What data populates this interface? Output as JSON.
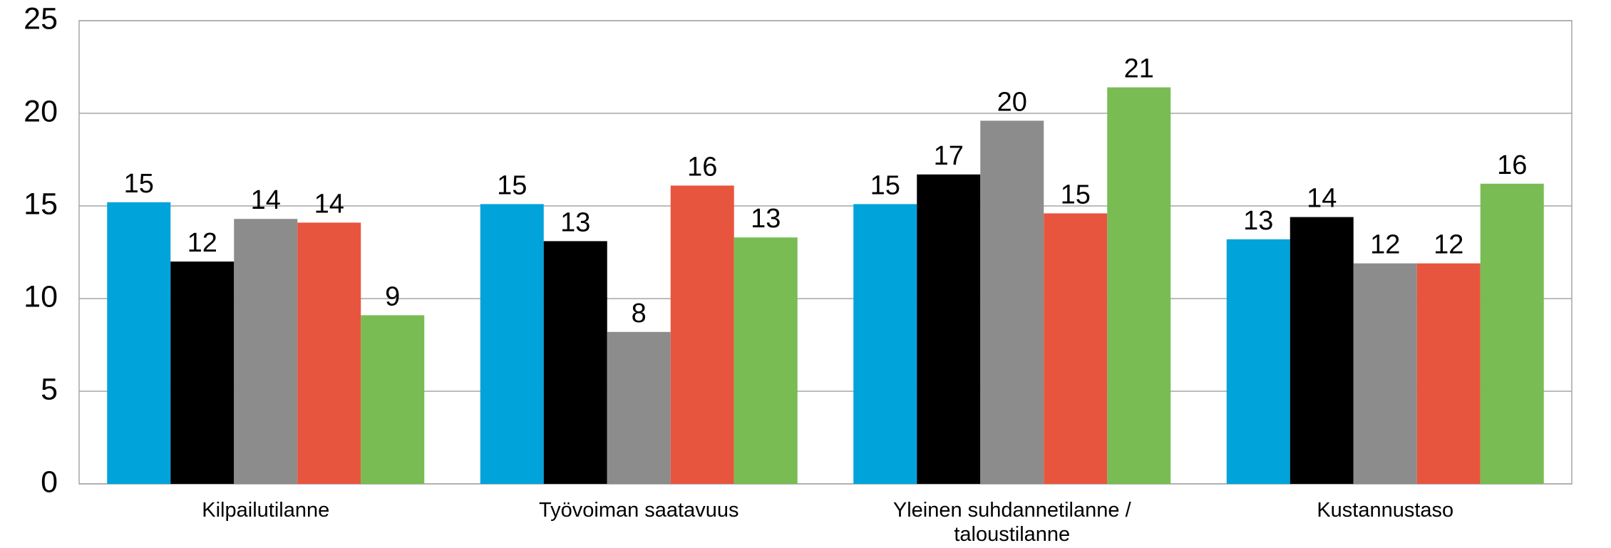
{
  "chart_data": {
    "type": "bar",
    "categories": [
      "Kilpailutilanne",
      "Työvoiman saatavuus",
      "Yleinen suhdannetilanne / taloustilanne",
      "Kustannustaso"
    ],
    "series": [
      {
        "color": "#00a3da",
        "values": [
          15.2,
          15.1,
          15.1,
          13.2
        ],
        "value_labels": [
          "15",
          "15",
          "15",
          "13"
        ]
      },
      {
        "color": "#000000",
        "values": [
          12.0,
          13.1,
          16.7,
          14.4
        ],
        "value_labels": [
          "12",
          "13",
          "17",
          "14"
        ]
      },
      {
        "color": "#8c8c8c",
        "values": [
          14.3,
          8.2,
          19.6,
          11.9
        ],
        "value_labels": [
          "14",
          "8",
          "20",
          "12"
        ]
      },
      {
        "color": "#e8553e",
        "values": [
          14.1,
          16.1,
          14.6,
          11.9
        ],
        "value_labels": [
          "14",
          "16",
          "15",
          "12"
        ]
      },
      {
        "color": "#78bc53",
        "values": [
          9.1,
          13.3,
          21.4,
          16.2
        ],
        "value_labels": [
          "9",
          "13",
          "21",
          "16"
        ]
      }
    ],
    "ylim": [
      0,
      25
    ],
    "yticks": [
      0,
      5,
      10,
      15,
      20,
      25
    ],
    "grid": true
  }
}
